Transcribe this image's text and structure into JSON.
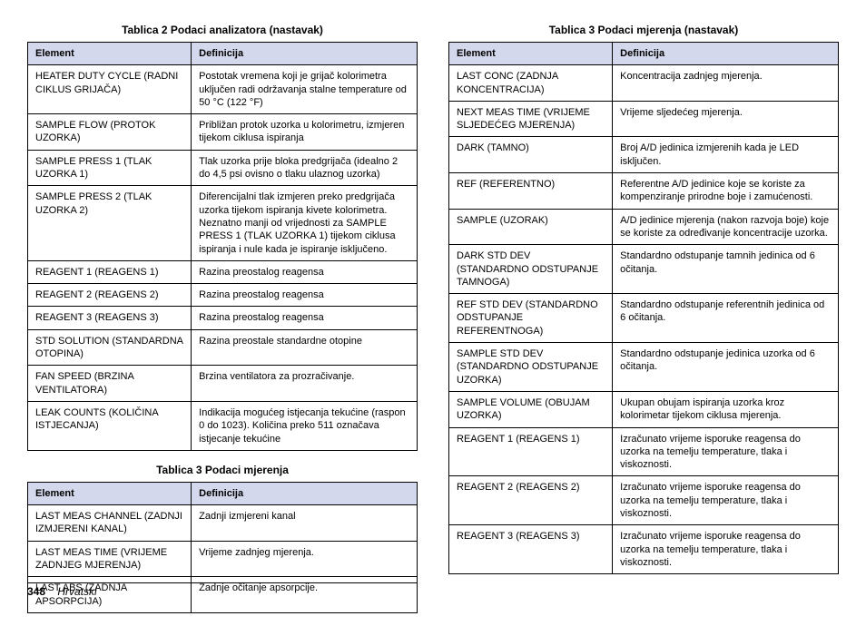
{
  "page_number": "348",
  "language": "Hrvatski",
  "tables": {
    "t2": {
      "caption": "Tablica 2  Podaci analizatora (nastavak)",
      "head": {
        "c1": "Element",
        "c2": "Definicija"
      },
      "rows": [
        {
          "c1": "HEATER DUTY CYCLE (RADNI CIKLUS GRIJAČA)",
          "c2": "Postotak vremena koji je grijač kolorimetra uključen radi održavanja stalne temperature od 50 °C (122 °F)"
        },
        {
          "c1": "SAMPLE FLOW (PROTOK UZORKA)",
          "c2": "Približan protok uzorka u kolorimetru, izmjeren tijekom ciklusa ispiranja"
        },
        {
          "c1": "SAMPLE PRESS 1 (TLAK UZORKA 1)",
          "c2": "Tlak uzorka prije bloka predgrijača (idealno 2 do 4,5 psi ovisno o tlaku ulaznog uzorka)"
        },
        {
          "c1": "SAMPLE PRESS 2 (TLAK UZORKA 2)",
          "c2": "Diferencijalni tlak izmjeren preko predgrijača uzorka tijekom ispiranja kivete kolorimetra. Neznatno manji od vrijednosti za SAMPLE PRESS 1 (TLAK UZORKA 1) tijekom ciklusa ispiranja i nule kada je ispiranje isključeno."
        },
        {
          "c1": "REAGENT 1 (REAGENS 1)",
          "c2": "Razina preostalog reagensa"
        },
        {
          "c1": "REAGENT 2 (REAGENS 2)",
          "c2": "Razina preostalog reagensa"
        },
        {
          "c1": "REAGENT 3 (REAGENS 3)",
          "c2": "Razina preostalog reagensa"
        },
        {
          "c1": "STD SOLUTION (STANDARDNA OTOPINA)",
          "c2": "Razina preostale standardne otopine"
        },
        {
          "c1": "FAN SPEED (BRZINA VENTILATORA)",
          "c2": "Brzina ventilatora za prozračivanje."
        },
        {
          "c1": "LEAK COUNTS (KOLIČINA ISTJECANJA)",
          "c2": "Indikacija mogućeg istjecanja tekućine (raspon 0 do 1023). Količina preko 511 označava istjecanje tekućine"
        }
      ]
    },
    "t3a": {
      "caption": "Tablica 3  Podaci mjerenja",
      "head": {
        "c1": "Element",
        "c2": "Definicija"
      },
      "rows": [
        {
          "c1": "LAST MEAS CHANNEL (ZADNJI IZMJERENI KANAL)",
          "c2": "Zadnji izmjereni kanal"
        },
        {
          "c1": "LAST MEAS TIME (VRIJEME ZADNJEG MJERENJA)",
          "c2": "Vrijeme zadnjeg mjerenja."
        },
        {
          "c1": "LAST ABS (ZADNJA APSORPCIJA)",
          "c2": "Zadnje očitanje apsorpcije."
        }
      ]
    },
    "t3b": {
      "caption": "Tablica 3  Podaci mjerenja (nastavak)",
      "head": {
        "c1": "Element",
        "c2": "Definicija"
      },
      "rows": [
        {
          "c1": "LAST CONC (ZADNJA KONCENTRACIJA)",
          "c2": "Koncentracija zadnjeg mjerenja."
        },
        {
          "c1": "NEXT MEAS TIME (VRIJEME SLJEDEĆEG MJERENJA)",
          "c2": "Vrijeme sljedećeg mjerenja."
        },
        {
          "c1": "DARK (TAMNO)",
          "c2": "Broj A/D jedinica izmjerenih kada je LED isključen."
        },
        {
          "c1": "REF (REFERENTNO)",
          "c2": "Referentne A/D jedinice koje se koriste za kompenziranje prirodne boje i zamućenosti."
        },
        {
          "c1": "SAMPLE (UZORAK)",
          "c2": "A/D jedinice mjerenja (nakon razvoja boje) koje se koriste za određivanje koncentracije uzorka."
        },
        {
          "c1": "DARK STD DEV (STANDARDNO ODSTUPANJE TAMNOGA)",
          "c2": "Standardno odstupanje tamnih jedinica od 6 očitanja."
        },
        {
          "c1": "REF STD DEV (STANDARDNO ODSTUPANJE REFERENTNOGA)",
          "c2": "Standardno odstupanje referentnih jedinica od 6 očitanja."
        },
        {
          "c1": "SAMPLE STD DEV (STANDARDNO ODSTUPANJE UZORKA)",
          "c2": "Standardno odstupanje jedinica uzorka od 6 očitanja."
        },
        {
          "c1": "SAMPLE VOLUME (OBUJAM UZORKA)",
          "c2": "Ukupan obujam ispiranja uzorka kroz kolorimetar tijekom ciklusa mjerenja."
        },
        {
          "c1": "REAGENT 1 (REAGENS 1)",
          "c2": "Izračunato vrijeme isporuke reagensa do uzorka na temelju temperature, tlaka i viskoznosti."
        },
        {
          "c1": "REAGENT 2 (REAGENS 2)",
          "c2": "Izračunato vrijeme isporuke reagensa do uzorka na temelju temperature, tlaka i viskoznosti."
        },
        {
          "c1": "REAGENT 3 (REAGENS 3)",
          "c2": "Izračunato vrijeme isporuke reagensa do uzorka na temelju temperature, tlaka i viskoznosti."
        }
      ]
    }
  }
}
